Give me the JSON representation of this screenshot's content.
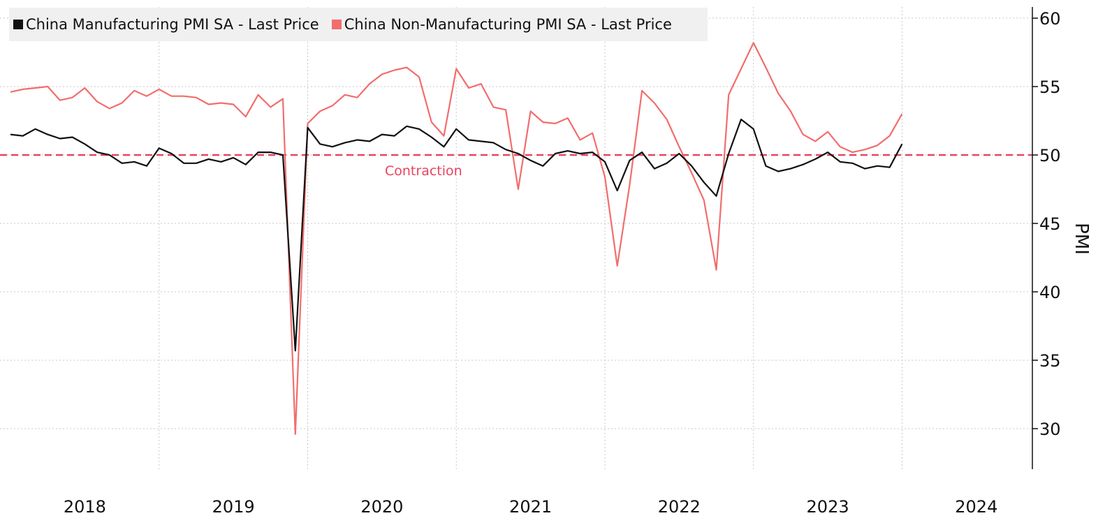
{
  "chart_data": {
    "type": "line",
    "title": "",
    "xlabel": "",
    "ylabel": "PMI",
    "ylim": [
      27,
      61
    ],
    "yticks": [
      30,
      35,
      40,
      45,
      50,
      55,
      60
    ],
    "xlim": [
      2017.5,
      2024.4
    ],
    "x_ticks": [
      {
        "label": "2018",
        "value": 2018.0
      },
      {
        "label": "2019",
        "value": 2019.0
      },
      {
        "label": "2020",
        "value": 2020.0
      },
      {
        "label": "2021",
        "value": 2021.0
      },
      {
        "label": "2022",
        "value": 2022.0
      },
      {
        "label": "2023",
        "value": 2023.0
      },
      {
        "label": "2024",
        "value": 2024.0
      }
    ],
    "x_separators": [
      2018.5,
      2019.5,
      2020.5,
      2021.5,
      2022.5,
      2023.5
    ],
    "reference_line": {
      "y": 50,
      "label": "Contraction",
      "color": "#e8445f"
    },
    "series": [
      {
        "name": "China Manufacturing PMI SA - Last Price",
        "color": "#111111",
        "start": 2017.5,
        "step": 0.0833333,
        "values": [
          51.5,
          51.4,
          51.9,
          51.5,
          51.2,
          51.3,
          50.8,
          50.2,
          50.0,
          49.4,
          49.5,
          49.2,
          50.5,
          50.1,
          49.4,
          49.4,
          49.7,
          49.5,
          49.8,
          49.3,
          50.2,
          50.2,
          50.0,
          35.7,
          52.0,
          50.8,
          50.6,
          50.9,
          51.1,
          51.0,
          51.5,
          51.4,
          52.1,
          51.9,
          51.3,
          50.6,
          51.9,
          51.1,
          51.0,
          50.9,
          50.4,
          50.1,
          49.6,
          49.2,
          50.1,
          50.3,
          50.1,
          50.2,
          49.5,
          47.4,
          49.6,
          50.2,
          49.0,
          49.4,
          50.1,
          49.2,
          48.0,
          47.0,
          50.1,
          52.6,
          51.9,
          49.2,
          48.8,
          49.0,
          49.3,
          49.7,
          50.2,
          49.5,
          49.4,
          49.0,
          49.2,
          49.1,
          50.8
        ]
      },
      {
        "name": "China Non-Manufacturing PMI SA - Last Price",
        "color": "#f26d6d",
        "start": 2017.5,
        "step": 0.0833333,
        "values": [
          54.6,
          54.8,
          54.9,
          55.0,
          54.0,
          54.2,
          54.9,
          53.9,
          53.4,
          53.8,
          54.7,
          54.3,
          54.8,
          54.3,
          54.3,
          54.2,
          53.7,
          53.8,
          53.7,
          52.8,
          54.4,
          53.5,
          54.1,
          29.6,
          52.3,
          53.2,
          53.6,
          54.4,
          54.2,
          55.2,
          55.9,
          56.2,
          56.4,
          55.7,
          52.4,
          51.4,
          56.3,
          54.9,
          55.2,
          53.5,
          53.3,
          47.5,
          53.2,
          52.4,
          52.3,
          52.7,
          51.1,
          51.6,
          48.4,
          41.9,
          47.8,
          54.7,
          53.8,
          52.6,
          50.6,
          48.7,
          46.7,
          41.6,
          54.4,
          56.3,
          58.2,
          56.4,
          54.5,
          53.2,
          51.5,
          51.0,
          51.7,
          50.6,
          50.2,
          50.4,
          50.7,
          51.4,
          53.0
        ]
      }
    ]
  },
  "legend": {
    "items": [
      {
        "label": "China Manufacturing PMI SA - Last Price",
        "color": "#111111"
      },
      {
        "label": "China Non-Manufacturing PMI SA - Last Price",
        "color": "#f26d6d"
      }
    ]
  }
}
